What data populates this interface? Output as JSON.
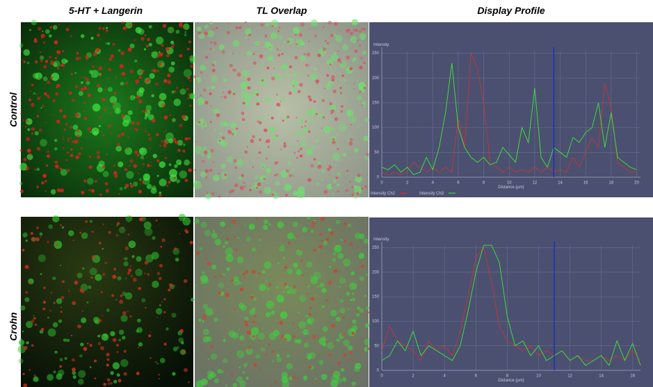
{
  "column_headers": [
    "5-HT + Langerin",
    "TL Overlap",
    "Display Profile"
  ],
  "row_labels": [
    "Control",
    "Crohn"
  ],
  "chart_data": [
    {
      "type": "line",
      "y_label": "Intensity",
      "x_label": "Distance (µm)",
      "x": [
        0,
        0.5,
        1,
        1.5,
        2,
        2.5,
        3,
        3.5,
        4,
        4.5,
        5,
        5.5,
        6,
        6.5,
        7,
        7.5,
        8,
        8.5,
        9,
        9.5,
        10,
        10.5,
        11,
        11.5,
        12,
        12.5,
        13,
        13.5,
        14,
        14.5,
        15,
        15.5,
        16,
        16.5,
        17,
        17.5,
        18,
        18.5,
        19,
        19.5,
        20
      ],
      "series": [
        {
          "name": "Intensity Ch2",
          "color": "#e0302a",
          "values": [
            10,
            5,
            10,
            5,
            10,
            30,
            20,
            10,
            20,
            10,
            20,
            10,
            120,
            60,
            250,
            220,
            150,
            30,
            20,
            10,
            20,
            10,
            15,
            10,
            20,
            10,
            20,
            10,
            15,
            10,
            40,
            20,
            50,
            80,
            60,
            190,
            140,
            30,
            20,
            10,
            10
          ]
        },
        {
          "name": "Intensity Ch3",
          "color": "#3ddc3d",
          "values": [
            20,
            15,
            25,
            10,
            20,
            5,
            10,
            40,
            15,
            60,
            130,
            230,
            100,
            60,
            40,
            30,
            40,
            25,
            30,
            60,
            45,
            30,
            100,
            70,
            180,
            40,
            20,
            60,
            50,
            40,
            80,
            70,
            90,
            100,
            150,
            60,
            130,
            40,
            30,
            20,
            15
          ]
        }
      ],
      "cursor_x": 13.5,
      "xlim": [
        0,
        20.3
      ],
      "xticks": [
        0,
        2,
        4,
        6,
        8,
        10,
        12,
        14,
        16,
        18,
        20
      ],
      "ylim": [
        0,
        255
      ],
      "yticks": [
        0,
        50,
        100,
        150,
        200,
        250
      ],
      "grid": true
    },
    {
      "type": "line",
      "y_label": "Intensity",
      "x_label": "Distance (µm)",
      "x": [
        0,
        0.5,
        1,
        1.5,
        2,
        2.5,
        3,
        3.5,
        4,
        4.5,
        5,
        5.5,
        6,
        6.5,
        7,
        7.5,
        8,
        8.5,
        9,
        9.5,
        10,
        10.5,
        11,
        11.5,
        12,
        12.5,
        13,
        13.5,
        14,
        14.5,
        15,
        15.5,
        16,
        16.5
      ],
      "series": [
        {
          "color": "#e0302a",
          "values": [
            40,
            90,
            60,
            50,
            40,
            20,
            60,
            40,
            50,
            30,
            80,
            150,
            230,
            250,
            180,
            90,
            60,
            50,
            40,
            50,
            30,
            40,
            30,
            40,
            20,
            30,
            20,
            20,
            30,
            20,
            30,
            20,
            40,
            20
          ]
        },
        {
          "color": "#3ddc3d",
          "values": [
            20,
            30,
            60,
            40,
            80,
            30,
            50,
            40,
            30,
            20,
            50,
            120,
            200,
            255,
            255,
            220,
            110,
            50,
            60,
            30,
            50,
            20,
            30,
            40,
            20,
            30,
            10,
            20,
            30,
            10,
            60,
            20,
            55,
            10
          ]
        }
      ],
      "cursor_x": 11,
      "xlim": [
        0,
        16.5
      ],
      "xticks": [
        0,
        2,
        4,
        6,
        8,
        10,
        12,
        14,
        16
      ],
      "ylim": [
        0,
        255
      ],
      "yticks": [
        0,
        50,
        100,
        150,
        200,
        250
      ],
      "grid": true
    }
  ]
}
